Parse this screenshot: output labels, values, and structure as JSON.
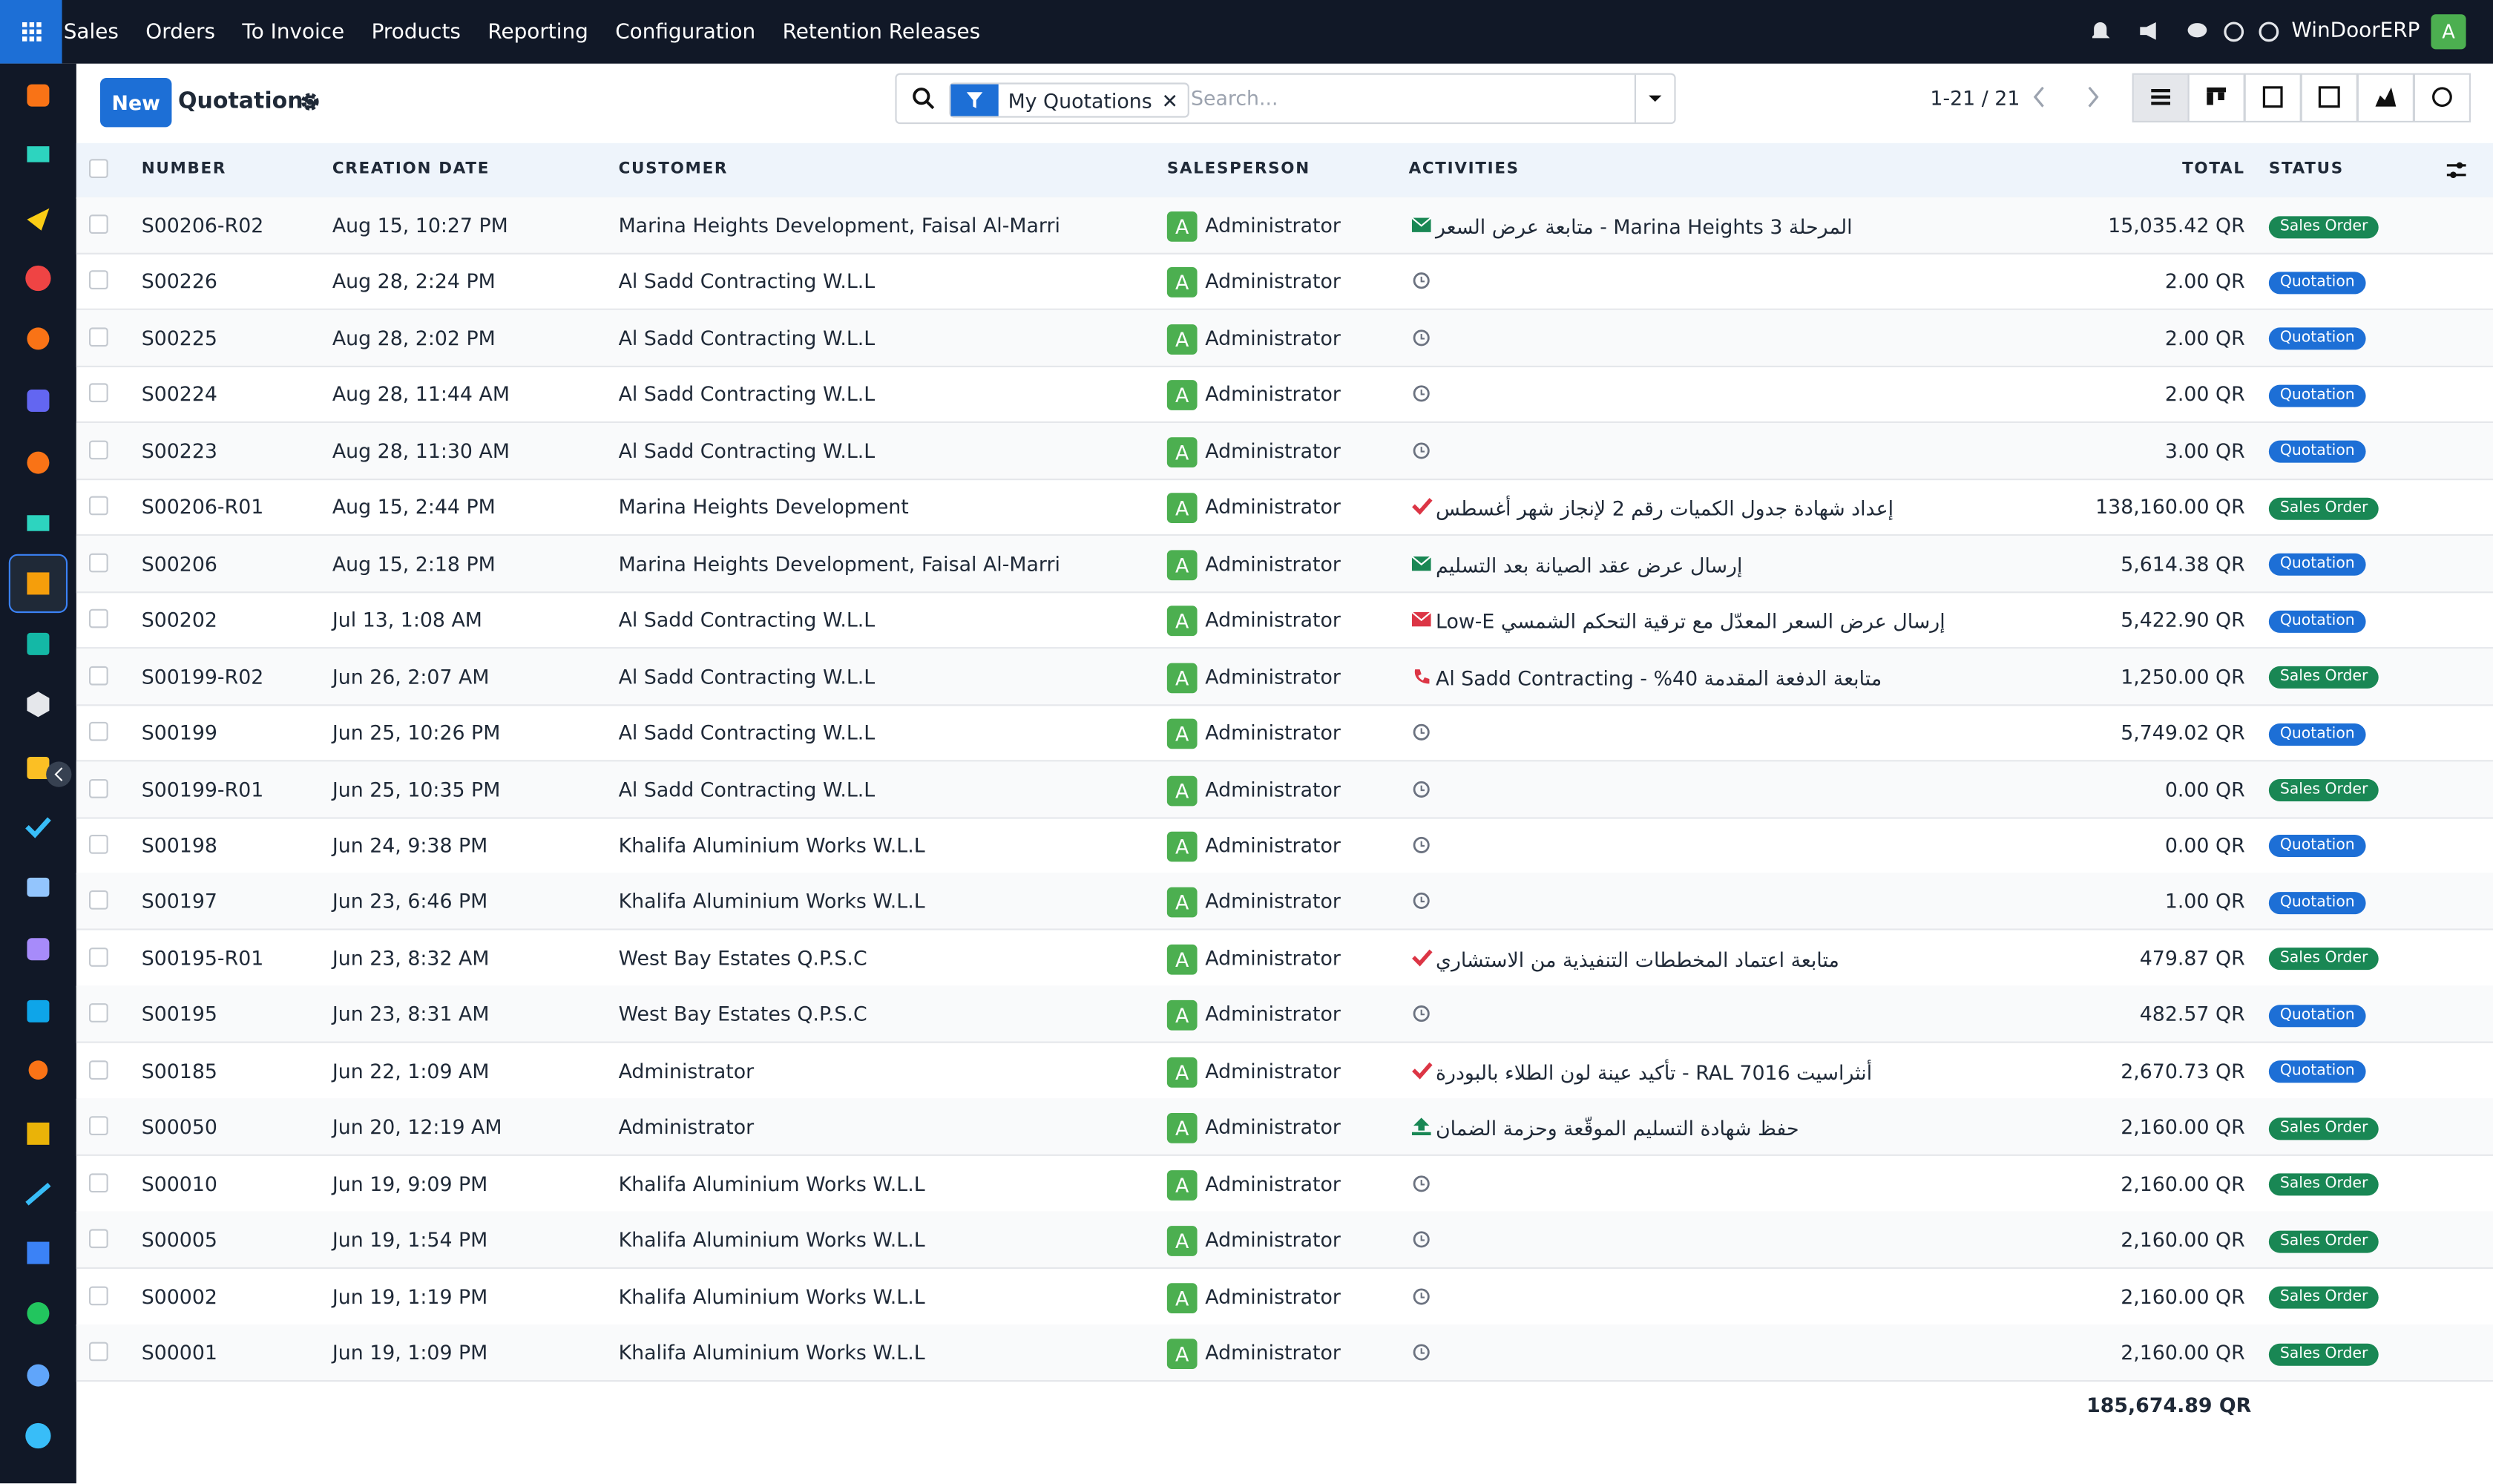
{
  "nav": {
    "menu": [
      "Sales",
      "Orders",
      "To Invoice",
      "Products",
      "Reporting",
      "Configuration",
      "Retention Releases"
    ],
    "company": "WinDoorERP",
    "avatar": "A"
  },
  "control": {
    "new_button": "New",
    "title": "Quotations",
    "facet": "My Quotations",
    "search_placeholder": "Search...",
    "pager": "1-21 / 21"
  },
  "table": {
    "columns": [
      "NUMBER",
      "CREATION DATE",
      "CUSTOMER",
      "SALESPERSON",
      "ACTIVITIES",
      "TOTAL",
      "STATUS"
    ],
    "rows": [
      {
        "number": "S00206-R02",
        "date": "Aug 15, 10:27 PM",
        "customer": "Marina Heights Development, Faisal Al-Marri",
        "initial": "A",
        "salesperson": "Administrator",
        "activity": {
          "icon": "mail",
          "text": "المرحلة 3 Marina Heights - متابعة عرض السعر"
        },
        "total": "15,035.42 QR",
        "status": "Sales Order"
      },
      {
        "number": "S00226",
        "date": "Aug 28, 2:24 PM",
        "customer": "Al Sadd Contracting W.L.L",
        "initial": "A",
        "salesperson": "Administrator",
        "activity": {
          "icon": "clock"
        },
        "total": "2.00 QR",
        "status": "Quotation"
      },
      {
        "number": "S00225",
        "date": "Aug 28, 2:02 PM",
        "customer": "Al Sadd Contracting W.L.L",
        "initial": "A",
        "salesperson": "Administrator",
        "activity": {
          "icon": "clock"
        },
        "total": "2.00 QR",
        "status": "Quotation"
      },
      {
        "number": "S00224",
        "date": "Aug 28, 11:44 AM",
        "customer": "Al Sadd Contracting W.L.L",
        "initial": "A",
        "salesperson": "Administrator",
        "activity": {
          "icon": "clock"
        },
        "total": "2.00 QR",
        "status": "Quotation"
      },
      {
        "number": "S00223",
        "date": "Aug 28, 11:30 AM",
        "customer": "Al Sadd Contracting W.L.L",
        "initial": "A",
        "salesperson": "Administrator",
        "activity": {
          "icon": "clock"
        },
        "total": "3.00 QR",
        "status": "Quotation"
      },
      {
        "number": "S00206-R01",
        "date": "Aug 15, 2:44 PM",
        "customer": "Marina Heights Development",
        "initial": "A",
        "salesperson": "Administrator",
        "activity": {
          "icon": "check",
          "text": "إعداد شهادة جدول الكميات رقم 2 لإنجاز شهر أغسطس"
        },
        "total": "138,160.00 QR",
        "status": "Sales Order"
      },
      {
        "number": "S00206",
        "date": "Aug 15, 2:18 PM",
        "customer": "Marina Heights Development, Faisal Al-Marri",
        "initial": "A",
        "salesperson": "Administrator",
        "activity": {
          "icon": "mail",
          "text": "إرسال عرض عقد الصيانة بعد التسليم"
        },
        "total": "5,614.38 QR",
        "status": "Quotation"
      },
      {
        "number": "S00202",
        "date": "Jul 13, 1:08 AM",
        "customer": "Al Sadd Contracting W.L.L",
        "initial": "A",
        "salesperson": "Administrator",
        "activity": {
          "icon": "mail-late",
          "text": "إرسال عرض السعر المعدّل مع ترقية التحكم الشمسي Low-E"
        },
        "total": "5,422.90 QR",
        "status": "Quotation"
      },
      {
        "number": "S00199-R02",
        "date": "Jun 26, 2:07 AM",
        "customer": "Al Sadd Contracting W.L.L",
        "initial": "A",
        "salesperson": "Administrator",
        "activity": {
          "icon": "phone",
          "text": "متابعة الدفعة المقدمة 40% - Al Sadd Contracting"
        },
        "total": "1,250.00 QR",
        "status": "Sales Order"
      },
      {
        "number": "S00199",
        "date": "Jun 25, 10:26 PM",
        "customer": "Al Sadd Contracting W.L.L",
        "initial": "A",
        "salesperson": "Administrator",
        "activity": {
          "icon": "clock"
        },
        "total": "5,749.02 QR",
        "status": "Quotation"
      },
      {
        "number": "S00199-R01",
        "date": "Jun 25, 10:35 PM",
        "customer": "Al Sadd Contracting W.L.L",
        "initial": "A",
        "salesperson": "Administrator",
        "activity": {
          "icon": "clock"
        },
        "total": "0.00 QR",
        "status": "Sales Order"
      },
      {
        "number": "S00198",
        "date": "Jun 24, 9:38 PM",
        "customer": "Khalifa Aluminium Works W.L.L",
        "initial": "A",
        "salesperson": "Administrator",
        "activity": {
          "icon": "clock"
        },
        "total": "0.00 QR",
        "status": "Quotation"
      },
      {
        "number": "S00197",
        "date": "Jun 23, 6:46 PM",
        "customer": "Khalifa Aluminium Works W.L.L",
        "initial": "A",
        "salesperson": "Administrator",
        "activity": {
          "icon": "clock"
        },
        "total": "1.00 QR",
        "status": "Quotation"
      },
      {
        "number": "S00195-R01",
        "date": "Jun 23, 8:32 AM",
        "customer": "West Bay Estates Q.P.S.C",
        "initial": "A",
        "salesperson": "Administrator",
        "activity": {
          "icon": "check",
          "text": "متابعة اعتماد المخططات التنفيذية من الاستشاري"
        },
        "total": "479.87 QR",
        "status": "Sales Order"
      },
      {
        "number": "S00195",
        "date": "Jun 23, 8:31 AM",
        "customer": "West Bay Estates Q.P.S.C",
        "initial": "A",
        "salesperson": "Administrator",
        "activity": {
          "icon": "clock"
        },
        "total": "482.57 QR",
        "status": "Quotation"
      },
      {
        "number": "S00185",
        "date": "Jun 22, 1:09 AM",
        "customer": "Administrator",
        "initial": "A",
        "salesperson": "Administrator",
        "activity": {
          "icon": "check",
          "text": "أنثراسيت RAL 7016 - تأكيد عينة لون الطلاء بالبودرة"
        },
        "total": "2,670.73 QR",
        "status": "Quotation"
      },
      {
        "number": "S00050",
        "date": "Jun 20, 12:19 AM",
        "customer": "Administrator",
        "initial": "A",
        "salesperson": "Administrator",
        "activity": {
          "icon": "upload",
          "text": "حفظ شهادة التسليم الموقّعة وحزمة الضمان"
        },
        "total": "2,160.00 QR",
        "status": "Sales Order"
      },
      {
        "number": "S00010",
        "date": "Jun 19, 9:09 PM",
        "customer": "Khalifa Aluminium Works W.L.L",
        "initial": "A",
        "salesperson": "Administrator",
        "activity": {
          "icon": "clock"
        },
        "total": "2,160.00 QR",
        "status": "Sales Order"
      },
      {
        "number": "S00005",
        "date": "Jun 19, 1:54 PM",
        "customer": "Khalifa Aluminium Works W.L.L",
        "initial": "A",
        "salesperson": "Administrator",
        "activity": {
          "icon": "clock"
        },
        "total": "2,160.00 QR",
        "status": "Sales Order"
      },
      {
        "number": "S00002",
        "date": "Jun 19, 1:19 PM",
        "customer": "Khalifa Aluminium Works W.L.L",
        "initial": "A",
        "salesperson": "Administrator",
        "activity": {
          "icon": "clock"
        },
        "total": "2,160.00 QR",
        "status": "Sales Order"
      },
      {
        "number": "S00001",
        "date": "Jun 19, 1:09 PM",
        "customer": "Khalifa Aluminium Works W.L.L",
        "initial": "A",
        "salesperson": "Administrator",
        "activity": {
          "icon": "clock"
        },
        "total": "2,160.00 QR",
        "status": "Sales Order"
      }
    ],
    "footer_total": "185,674.89 QR"
  }
}
